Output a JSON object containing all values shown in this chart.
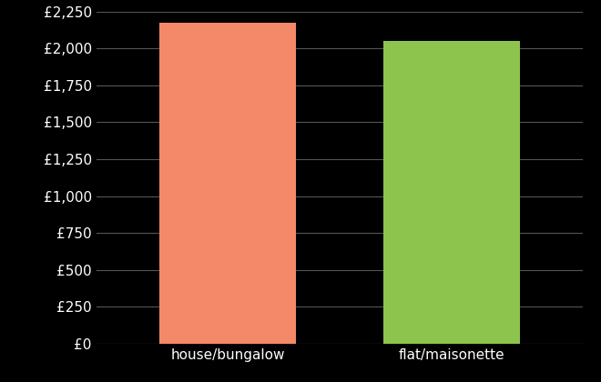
{
  "categories": [
    "house/bungalow",
    "flat/maisonette"
  ],
  "values": [
    2175,
    2050
  ],
  "bar_colors": [
    "#F4896A",
    "#8DC44E"
  ],
  "background_color": "#000000",
  "text_color": "#ffffff",
  "grid_color": "#555555",
  "ylim": [
    0,
    2250
  ],
  "yticks": [
    0,
    250,
    500,
    750,
    1000,
    1250,
    1500,
    1750,
    2000,
    2250
  ],
  "bar_width": 0.28,
  "x_positions": [
    0.27,
    0.73
  ],
  "xlim": [
    0,
    1
  ],
  "xlabel": "",
  "ylabel": "",
  "tick_fontsize": 11,
  "label_fontsize": 11
}
